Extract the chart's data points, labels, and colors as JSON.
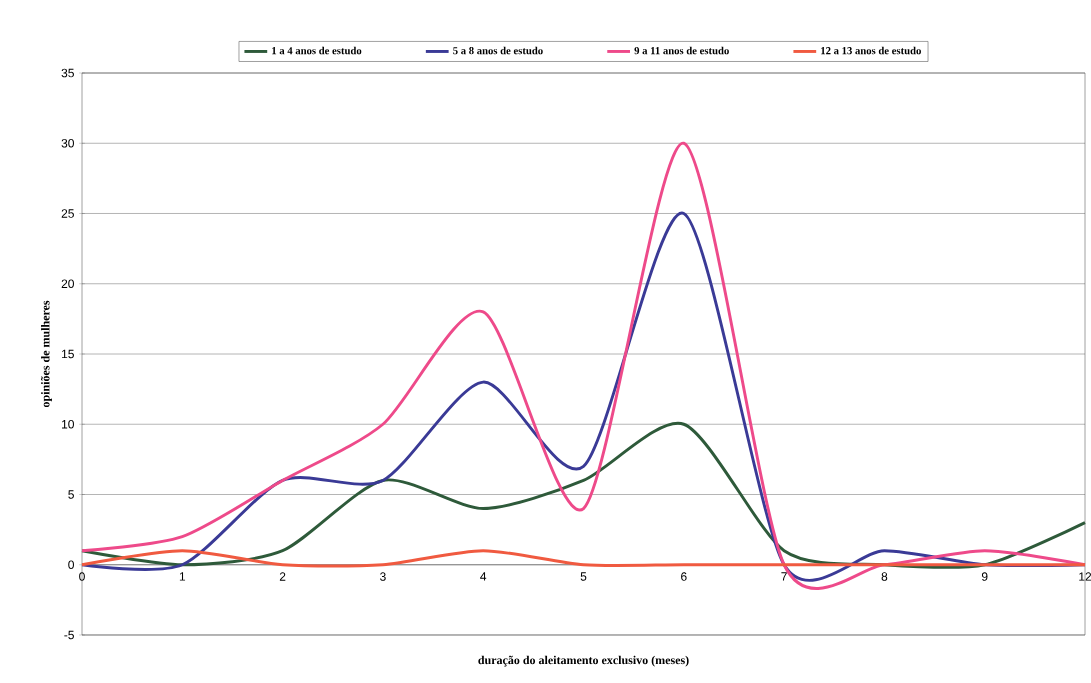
{
  "chart_data": {
    "type": "line",
    "xlabel": "duração do aleitamento exclusivo (meses)",
    "ylabel": "opiniões de mulheres",
    "categories": [
      "0",
      "1",
      "2",
      "3",
      "4",
      "5",
      "6",
      "7",
      "8",
      "9",
      "12"
    ],
    "series": [
      {
        "name": "1 a 4 anos de estudo",
        "color": "#2e5a3a",
        "values": [
          1,
          0,
          1,
          6,
          4,
          6,
          10,
          1,
          0,
          0,
          3
        ]
      },
      {
        "name": "5 a 8 anos de estudo",
        "color": "#3a3a96",
        "values": [
          0,
          0,
          6,
          6,
          13,
          7,
          25,
          0,
          1,
          0,
          0
        ]
      },
      {
        "name": "9 a 11 anos de estudo",
        "color": "#ee4a8a",
        "values": [
          1,
          2,
          6,
          10,
          18,
          4,
          30,
          0,
          0,
          1,
          0
        ]
      },
      {
        "name": "12 a 13 anos de estudo",
        "color": "#f05a40",
        "values": [
          0,
          1,
          0,
          0,
          1,
          0,
          0,
          0,
          0,
          0,
          0
        ]
      }
    ],
    "ylim": [
      -5,
      35
    ],
    "yticks": [
      -5,
      0,
      5,
      10,
      15,
      20,
      25,
      30,
      35
    ],
    "grid": "y",
    "legend": "top",
    "marker": "none",
    "line_style": "solid"
  }
}
